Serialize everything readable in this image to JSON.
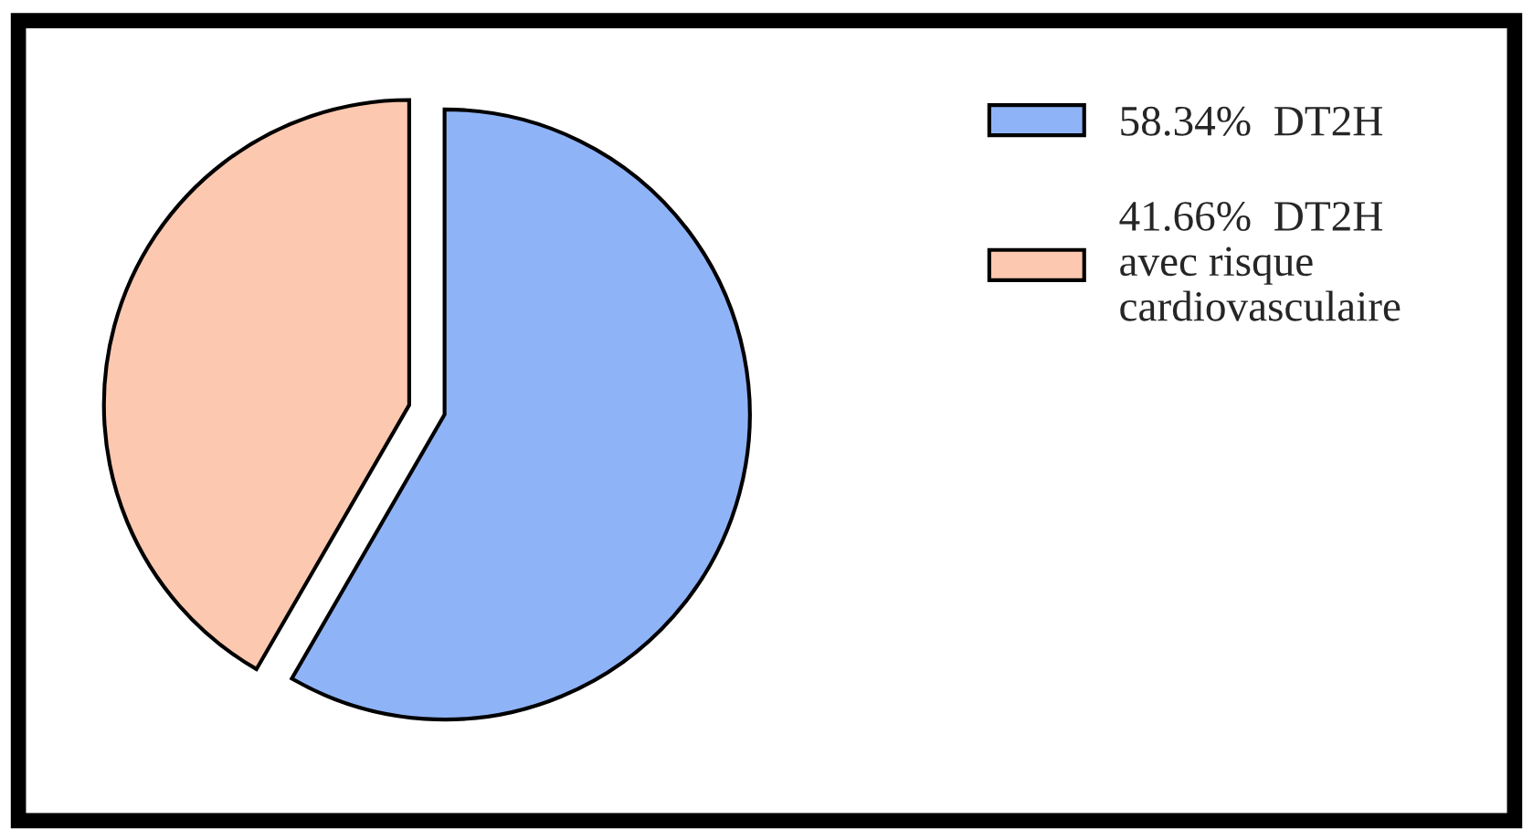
{
  "chart_data": {
    "type": "pie",
    "categories": [
      "58.34%  DT2H",
      "41.66%  DT2H\navec risque\ncardiovasculaire"
    ],
    "values": [
      58.34,
      41.66
    ],
    "colors": [
      "#8fb3f7",
      "#fdc8b0"
    ],
    "legend": "top right"
  }
}
